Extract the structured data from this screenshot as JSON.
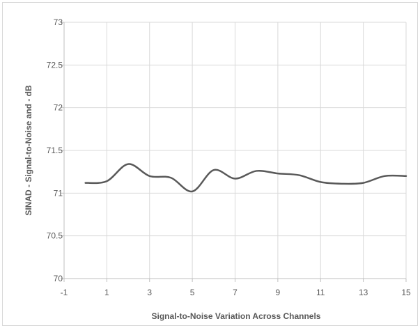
{
  "chart_data": {
    "type": "line",
    "title": "",
    "xlabel": "Signal-to-Noise Variation Across Channels",
    "ylabel": "SINAD - Signal-to-Noise and - dB",
    "xlim": [
      -1,
      15
    ],
    "ylim": [
      70,
      73
    ],
    "x_ticks": [
      -1,
      1,
      3,
      5,
      7,
      9,
      11,
      13,
      15
    ],
    "y_ticks": [
      70,
      70.5,
      71,
      71.5,
      72,
      72.5,
      73
    ],
    "x_tick_labels": [
      "-1",
      "1",
      "3",
      "5",
      "7",
      "9",
      "11",
      "13",
      "15"
    ],
    "y_tick_labels": [
      "70",
      "70.5",
      "71",
      "71.5",
      "72",
      "72.5",
      "73"
    ],
    "grid": true,
    "legend": "none",
    "colors": {
      "line": "#595959",
      "grid": "#d9d9d9",
      "axis": "#bfbfbf",
      "text": "#595959"
    },
    "series": [
      {
        "x": [
          0,
          1,
          2,
          3,
          4,
          5,
          6,
          7,
          8,
          9,
          10,
          11,
          12,
          13,
          14,
          15
        ],
        "values": [
          71.12,
          71.14,
          71.34,
          71.2,
          71.18,
          71.02,
          71.27,
          71.17,
          71.26,
          71.23,
          71.21,
          71.13,
          71.11,
          71.12,
          71.2,
          71.2
        ]
      }
    ]
  }
}
